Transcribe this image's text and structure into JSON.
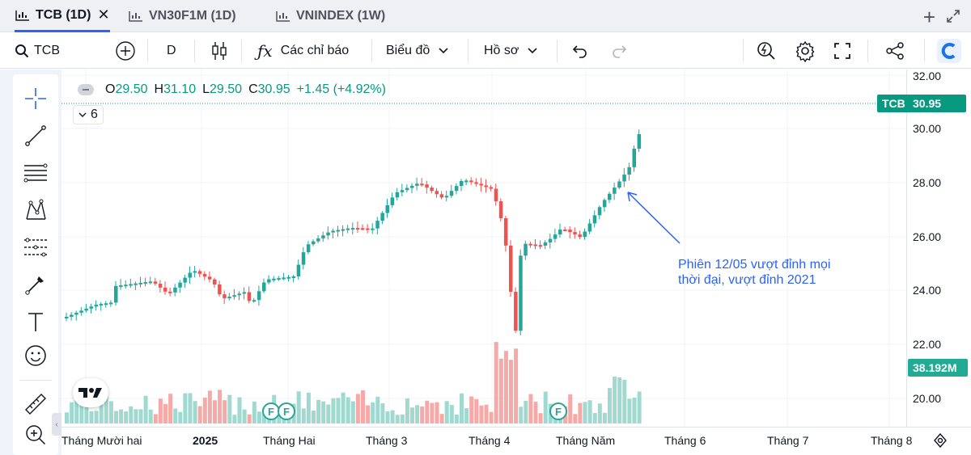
{
  "tabs": [
    {
      "label": "TCB (1D)",
      "active": true
    },
    {
      "label": "VN30F1M (1D)",
      "active": false
    },
    {
      "label": "VNINDEX (1W)",
      "active": false
    }
  ],
  "toolbar": {
    "symbol": "TCB",
    "interval": "D",
    "indicators_label": "Các chỉ báo",
    "chart_label": "Biểu đồ",
    "profile_label": "Hồ sơ"
  },
  "legend": {
    "open_label": "O",
    "open": "29.50",
    "high_label": "H",
    "high": "31.10",
    "low_label": "L",
    "low": "29.50",
    "close_label": "C",
    "close": "30.95",
    "change": "+1.45 (+4.92%)"
  },
  "volume_indicator": {
    "value": "6"
  },
  "annotation": {
    "line1": "Phiên 12/05 vượt đỉnh mọi",
    "line2": "thời đại, vượt đỉnh 2021"
  },
  "price_scale": {
    "labels": [
      "32.00",
      "30.00",
      "28.00",
      "26.00",
      "24.00",
      "22.00",
      "20.00"
    ],
    "symbol_badge": "TCB",
    "last_price": "30.95",
    "volume_badge": "38.192M"
  },
  "time_scale": {
    "labels": [
      "Tháng Mười hai",
      "2025",
      "Tháng Hai",
      "Tháng 3",
      "Tháng 4",
      "Tháng Năm",
      "Tháng 6",
      "Tháng 7",
      "Tháng 8"
    ]
  },
  "event_markers": [
    "F",
    "F",
    "F"
  ],
  "colors": {
    "up": "#26a69a",
    "down": "#ef5350",
    "volume_up": "#9fd9cf",
    "volume_down": "#f7a9a7",
    "accent": "#2962ff",
    "price_badge": "#089981"
  }
}
